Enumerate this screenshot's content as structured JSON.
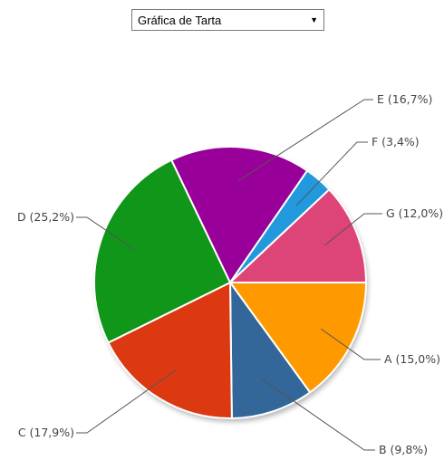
{
  "chart_selector": {
    "selected": "Gráfica de Tarta"
  },
  "colors": {
    "A": "#ff9900",
    "B": "#336699",
    "C": "#dc3912",
    "D": "#109618",
    "E": "#990099",
    "F": "#2299dd",
    "G": "#dd4477"
  },
  "chart_data": {
    "type": "pie",
    "legend": "labels-outside",
    "slices": [
      {
        "name": "A",
        "value": 15.0,
        "label": "A (15,0%)"
      },
      {
        "name": "B",
        "value": 9.8,
        "label": "B (9,8%)"
      },
      {
        "name": "C",
        "value": 17.9,
        "label": "C (17,9%)"
      },
      {
        "name": "D",
        "value": 25.2,
        "label": "D (25,2%)"
      },
      {
        "name": "E",
        "value": 16.7,
        "label": "E (16,7%)"
      },
      {
        "name": "F",
        "value": 3.4,
        "label": "F (3,4%)"
      },
      {
        "name": "G",
        "value": 12.0,
        "label": "G (12,0%)"
      }
    ]
  }
}
